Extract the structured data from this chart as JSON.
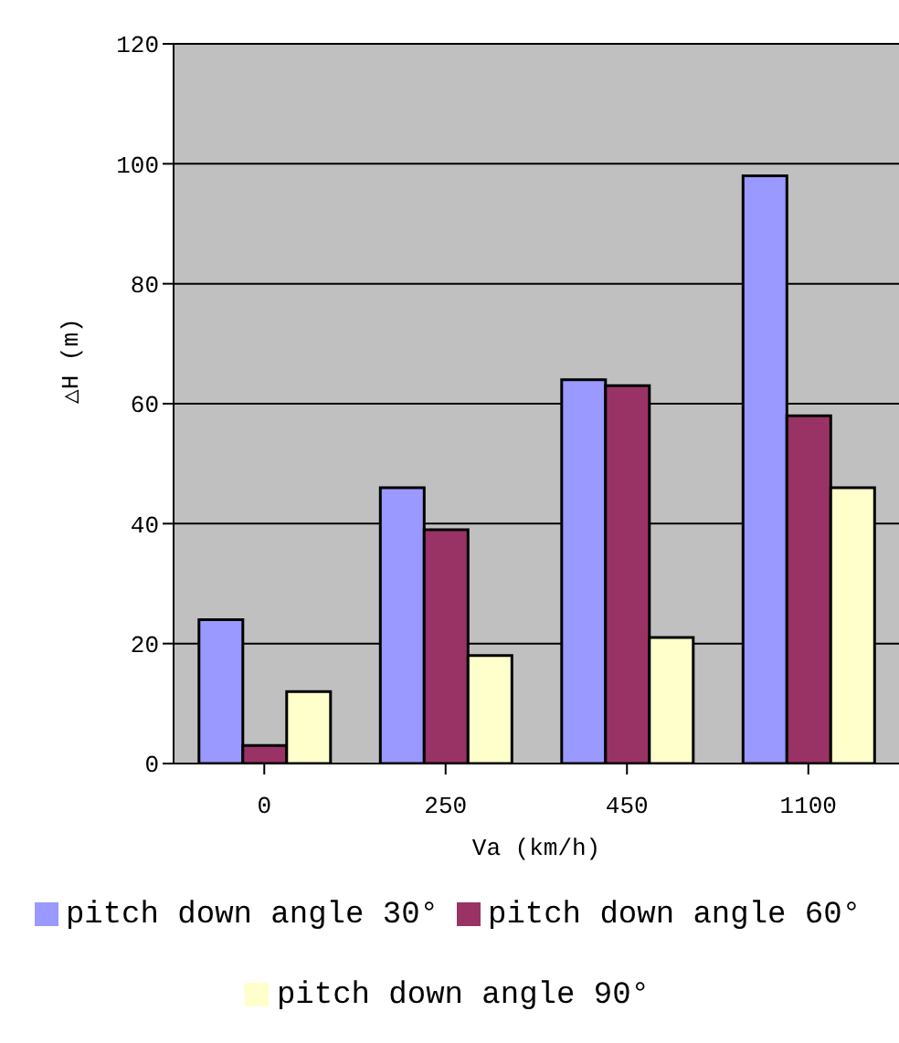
{
  "chart_data": {
    "type": "bar",
    "xlabel": "Va (km/h)",
    "ylabel": "△H (m)",
    "categories": [
      "0",
      "250",
      "450",
      "1100"
    ],
    "series": [
      {
        "name": "pitch down angle 30°",
        "color": "#9999ff",
        "values": [
          24,
          46,
          64,
          98
        ]
      },
      {
        "name": "pitch down angle 60°",
        "color": "#993366",
        "values": [
          3,
          39,
          63,
          58
        ]
      },
      {
        "name": "pitch down angle 90°",
        "color": "#ffffcc",
        "values": [
          12,
          18,
          21,
          46
        ]
      }
    ],
    "ylim": [
      0,
      120
    ],
    "yticks": [
      0,
      20,
      40,
      60,
      80,
      100,
      120
    ],
    "grid": "y",
    "legend": "bottom"
  }
}
